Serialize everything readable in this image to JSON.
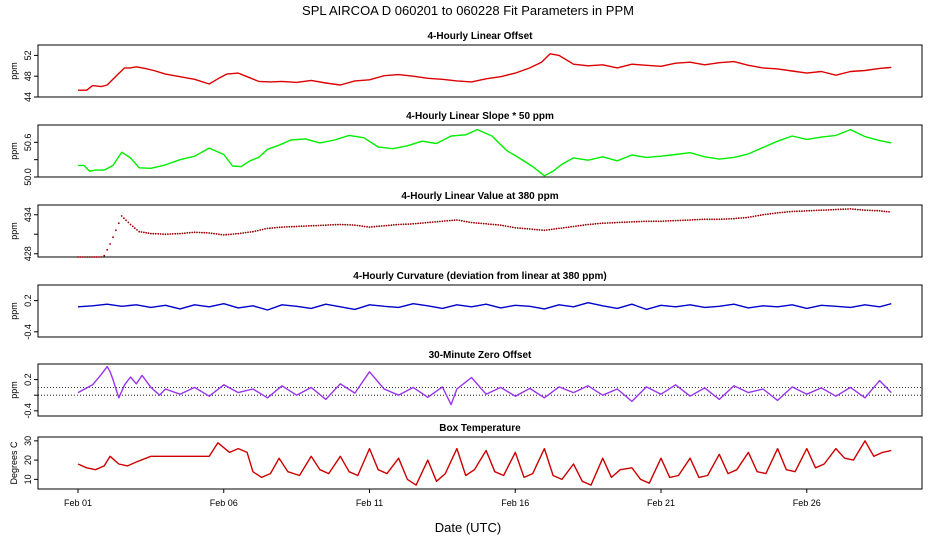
{
  "title": "SPL   AIRCOA D   060201 to 060228   Fit Parameters in PPM",
  "xlabel": "Date (UTC)",
  "x_tick_labels": [
    "Feb 01",
    "Feb 06",
    "Feb 11",
    "Feb 16",
    "Feb 21",
    "Feb 26"
  ],
  "chart_data": [
    {
      "type": "line",
      "title": "4-Hourly Linear Offset",
      "ylabel": "ppm",
      "color": "#dd0000",
      "style": "line",
      "ylim": [
        44,
        54
      ],
      "yticks": [
        44,
        48,
        52
      ],
      "ytick_labels": [
        "44",
        "48",
        "52"
      ],
      "x": [
        0.0,
        0.3,
        0.5,
        0.8,
        1.0,
        1.3,
        1.6,
        1.8,
        2.0,
        2.3,
        2.6,
        3.0,
        3.5,
        4.0,
        4.5,
        4.8,
        5.1,
        5.5,
        5.8,
        6.2,
        6.6,
        7.0,
        7.5,
        8.0,
        8.5,
        9.0,
        9.5,
        10.0,
        10.5,
        11.0,
        11.5,
        12.0,
        12.5,
        13.0,
        13.5,
        14.0,
        14.5,
        15.0,
        15.5,
        15.9,
        16.2,
        16.5,
        17.0,
        17.5,
        18.0,
        18.5,
        19.0,
        19.5,
        20.0,
        20.5,
        21.0,
        21.5,
        22.0,
        22.5,
        23.0,
        23.5,
        24.0,
        24.5,
        25.0,
        25.5,
        26.0,
        26.5,
        27.0,
        27.5,
        27.9
      ],
      "values": [
        45.3,
        45.3,
        46.2,
        46.0,
        46.3,
        48.0,
        49.6,
        49.6,
        49.8,
        49.5,
        49.1,
        48.4,
        47.9,
        47.4,
        46.5,
        47.5,
        48.4,
        48.6,
        47.9,
        47.0,
        46.9,
        47.0,
        46.8,
        47.2,
        46.7,
        46.3,
        47.1,
        47.3,
        48.1,
        48.3,
        48.0,
        47.6,
        47.4,
        47.1,
        46.9,
        47.5,
        47.9,
        48.6,
        49.6,
        50.7,
        52.3,
        52.0,
        50.3,
        50.0,
        50.2,
        49.6,
        50.3,
        50.1,
        49.9,
        50.5,
        50.7,
        50.2,
        50.6,
        50.8,
        50.1,
        49.6,
        49.4,
        49.0,
        48.6,
        48.9,
        48.2,
        48.9,
        49.1,
        49.5,
        49.7
      ]
    },
    {
      "type": "line",
      "title": "4-Hourly Linear Slope * 50 ppm",
      "ylabel": "ppm",
      "color": "#00ee00",
      "style": "line",
      "ylim": [
        50.0,
        50.9
      ],
      "yticks": [
        50.0,
        50.3,
        50.6
      ],
      "ytick_labels": [
        "50.0",
        "",
        "50.6"
      ],
      "x": [
        0.0,
        0.2,
        0.4,
        0.6,
        0.9,
        1.2,
        1.5,
        1.8,
        2.1,
        2.5,
        3.0,
        3.5,
        4.0,
        4.5,
        5.0,
        5.3,
        5.6,
        5.9,
        6.2,
        6.5,
        6.9,
        7.3,
        7.8,
        8.3,
        8.8,
        9.3,
        9.8,
        10.3,
        10.8,
        11.3,
        11.8,
        12.3,
        12.8,
        13.3,
        13.7,
        14.2,
        14.7,
        15.2,
        15.6,
        16.0,
        16.3,
        16.6,
        17.0,
        17.5,
        18.0,
        18.5,
        19.0,
        19.5,
        20.0,
        20.5,
        21.0,
        21.5,
        22.0,
        22.5,
        23.0,
        23.5,
        24.0,
        24.5,
        25.0,
        25.5,
        26.0,
        26.5,
        27.0,
        27.5,
        27.9
      ],
      "values": [
        50.2,
        50.2,
        50.1,
        50.12,
        50.12,
        50.2,
        50.43,
        50.33,
        50.16,
        50.15,
        50.21,
        50.3,
        50.36,
        50.5,
        50.39,
        50.19,
        50.18,
        50.28,
        50.34,
        50.48,
        50.55,
        50.64,
        50.66,
        50.59,
        50.64,
        50.72,
        50.68,
        50.52,
        50.49,
        50.54,
        50.62,
        50.58,
        50.71,
        50.73,
        50.82,
        50.71,
        50.46,
        50.31,
        50.18,
        50.02,
        50.1,
        50.22,
        50.33,
        50.29,
        50.35,
        50.28,
        50.38,
        50.34,
        50.36,
        50.39,
        50.42,
        50.35,
        50.31,
        50.34,
        50.4,
        50.51,
        50.62,
        50.71,
        50.65,
        50.69,
        50.72,
        50.82,
        50.7,
        50.63,
        50.59
      ]
    },
    {
      "type": "scatter",
      "title": "4-Hourly Linear Value at 380 ppm",
      "ylabel": "ppm",
      "color": "#990000",
      "style": "dots",
      "ylim": [
        427.5,
        435.5
      ],
      "yticks": [
        428,
        431,
        434
      ],
      "ytick_labels": [
        "428",
        "",
        "434"
      ],
      "x": [
        0.0,
        0.4,
        0.8,
        0.9,
        1.1,
        1.3,
        1.5,
        1.8,
        2.1,
        2.5,
        3.0,
        3.5,
        4.0,
        4.5,
        5.0,
        5.5,
        6.0,
        6.5,
        7.0,
        7.5,
        8.0,
        8.5,
        9.0,
        9.5,
        10.0,
        10.5,
        11.0,
        11.5,
        12.0,
        12.5,
        13.0,
        13.5,
        14.0,
        14.5,
        15.0,
        15.5,
        16.0,
        16.5,
        17.0,
        17.5,
        18.0,
        18.5,
        19.0,
        19.5,
        20.0,
        20.5,
        21.0,
        21.5,
        22.0,
        22.5,
        23.0,
        23.5,
        24.0,
        24.5,
        25.0,
        25.5,
        26.0,
        26.5,
        27.0,
        27.5,
        27.9
      ],
      "values": [
        427.5,
        427.5,
        427.5,
        427.7,
        429.5,
        431.6,
        433.8,
        432.5,
        431.4,
        431.1,
        431.0,
        431.1,
        431.3,
        431.2,
        430.9,
        431.1,
        431.4,
        431.9,
        432.1,
        432.2,
        432.3,
        432.4,
        432.5,
        432.4,
        432.1,
        432.3,
        432.5,
        432.6,
        432.8,
        433.0,
        433.2,
        432.8,
        432.6,
        432.4,
        432.0,
        431.8,
        431.6,
        431.9,
        432.2,
        432.5,
        432.7,
        432.8,
        432.9,
        433.0,
        433.0,
        433.1,
        433.2,
        433.3,
        433.3,
        433.4,
        433.6,
        434.0,
        434.3,
        434.5,
        434.6,
        434.7,
        434.8,
        434.9,
        434.7,
        434.6,
        434.4
      ]
    },
    {
      "type": "line",
      "title": "4-Hourly Curvature (deviation from linear at 380 ppm)",
      "ylabel": "ppm",
      "color": "#0000cc",
      "style": "line",
      "ylim": [
        -0.5,
        0.5
      ],
      "yticks": [
        -0.4,
        0.2
      ],
      "ytick_labels": [
        "-0.4",
        "0.2"
      ],
      "x": [
        0.0,
        0.5,
        1.0,
        1.5,
        2.0,
        2.5,
        3.0,
        3.5,
        4.0,
        4.5,
        5.0,
        5.5,
        6.0,
        6.5,
        7.0,
        7.5,
        8.0,
        8.5,
        9.0,
        9.5,
        10.0,
        10.5,
        11.0,
        11.5,
        12.0,
        12.5,
        13.0,
        13.5,
        14.0,
        14.5,
        15.0,
        15.5,
        16.0,
        16.5,
        17.0,
        17.5,
        18.0,
        18.5,
        19.0,
        19.5,
        20.0,
        20.5,
        21.0,
        21.5,
        22.0,
        22.5,
        23.0,
        23.5,
        24.0,
        24.5,
        25.0,
        25.5,
        26.0,
        26.5,
        27.0,
        27.5,
        27.9
      ],
      "values": [
        0.08,
        0.1,
        0.13,
        0.09,
        0.12,
        0.07,
        0.11,
        0.04,
        0.12,
        0.08,
        0.14,
        0.06,
        0.1,
        0.02,
        0.12,
        0.09,
        0.05,
        0.13,
        0.08,
        0.03,
        0.12,
        0.09,
        0.07,
        0.14,
        0.1,
        0.05,
        0.12,
        0.08,
        0.13,
        0.06,
        0.11,
        0.09,
        0.04,
        0.12,
        0.08,
        0.16,
        0.1,
        0.05,
        0.13,
        0.03,
        0.11,
        0.08,
        0.12,
        0.07,
        0.09,
        0.13,
        0.06,
        0.1,
        0.08,
        0.12,
        0.05,
        0.11,
        0.09,
        0.07,
        0.12,
        0.08,
        0.14
      ]
    },
    {
      "type": "line",
      "title": "30-Minute Zero Offset",
      "ylabel": "ppm",
      "color": "#9933ee",
      "style": "line",
      "ylim": [
        -0.5,
        0.5
      ],
      "yticks": [
        -0.4,
        -0.1,
        0.2
      ],
      "ytick_labels": [
        "-0.4",
        "",
        "0.2"
      ],
      "reference_lines": [
        0.05,
        -0.1
      ],
      "x": [
        0.0,
        0.5,
        0.8,
        1.0,
        1.1,
        1.2,
        1.4,
        1.6,
        1.8,
        2.0,
        2.2,
        2.5,
        2.8,
        3.0,
        3.5,
        4.0,
        4.5,
        5.0,
        5.5,
        6.0,
        6.5,
        7.0,
        7.5,
        8.0,
        8.5,
        9.0,
        9.5,
        10.0,
        10.5,
        11.0,
        11.5,
        12.0,
        12.5,
        12.8,
        13.0,
        13.5,
        14.0,
        14.5,
        15.0,
        15.5,
        16.0,
        16.5,
        17.0,
        17.5,
        18.0,
        18.5,
        19.0,
        19.5,
        20.0,
        20.5,
        21.0,
        21.5,
        22.0,
        22.5,
        23.0,
        23.5,
        24.0,
        24.5,
        25.0,
        25.5,
        26.0,
        26.5,
        27.0,
        27.5,
        27.9
      ],
      "values": [
        -0.05,
        0.1,
        0.3,
        0.45,
        0.35,
        0.2,
        -0.15,
        0.1,
        0.25,
        0.12,
        0.28,
        0.05,
        -0.1,
        0.02,
        -0.08,
        0.05,
        -0.12,
        0.1,
        -0.05,
        0.02,
        -0.15,
        0.08,
        -0.1,
        0.05,
        -0.18,
        0.12,
        -0.06,
        0.35,
        0.02,
        -0.1,
        0.05,
        -0.14,
        0.06,
        -0.28,
        0.02,
        0.24,
        -0.08,
        0.05,
        -0.12,
        0.03,
        -0.15,
        0.06,
        -0.05,
        0.08,
        -0.1,
        0.02,
        -0.22,
        0.06,
        -0.08,
        0.1,
        -0.12,
        0.04,
        -0.18,
        0.08,
        -0.05,
        0.02,
        -0.2,
        0.06,
        -0.08,
        0.04,
        -0.12,
        0.05,
        -0.15,
        0.18,
        -0.05
      ]
    },
    {
      "type": "line",
      "title": "Box Temperature",
      "ylabel": "Degrees C",
      "color": "#cc0000",
      "style": "line",
      "ylim": [
        5,
        32
      ],
      "yticks": [
        10,
        20,
        30
      ],
      "ytick_labels": [
        "10",
        "20",
        "30"
      ],
      "x": [
        0.0,
        0.3,
        0.6,
        0.9,
        1.1,
        1.4,
        1.7,
        2.0,
        2.5,
        3.0,
        3.5,
        4.0,
        4.5,
        4.8,
        5.2,
        5.5,
        5.8,
        6.0,
        6.3,
        6.6,
        6.9,
        7.2,
        7.6,
        8.0,
        8.3,
        8.6,
        9.0,
        9.3,
        9.6,
        10.0,
        10.3,
        10.6,
        11.0,
        11.3,
        11.6,
        12.0,
        12.3,
        12.6,
        13.0,
        13.3,
        13.6,
        14.0,
        14.3,
        14.6,
        15.0,
        15.3,
        15.6,
        16.0,
        16.3,
        16.6,
        17.0,
        17.3,
        17.6,
        18.0,
        18.3,
        18.6,
        19.0,
        19.3,
        19.6,
        20.0,
        20.3,
        20.6,
        21.0,
        21.3,
        21.6,
        22.0,
        22.3,
        22.6,
        23.0,
        23.3,
        23.6,
        24.0,
        24.3,
        24.6,
        25.0,
        25.3,
        25.6,
        26.0,
        26.3,
        26.6,
        27.0,
        27.3,
        27.6,
        27.9
      ],
      "values": [
        18,
        16,
        15,
        17,
        22,
        18,
        17,
        19,
        22,
        22,
        22,
        22,
        22,
        29,
        24,
        26,
        24,
        14,
        11,
        13,
        21,
        14,
        12,
        22,
        15,
        13,
        22,
        14,
        12,
        26,
        15,
        13,
        21,
        10,
        7,
        20,
        9,
        13,
        26,
        12,
        15,
        25,
        14,
        12,
        24,
        11,
        13,
        26,
        12,
        10,
        18,
        9,
        7,
        21,
        11,
        15,
        16,
        10,
        8,
        21,
        11,
        12,
        21,
        11,
        12,
        23,
        13,
        15,
        24,
        14,
        13,
        26,
        15,
        14,
        26,
        16,
        18,
        26,
        21,
        20,
        30,
        22,
        24,
        25
      ]
    }
  ]
}
